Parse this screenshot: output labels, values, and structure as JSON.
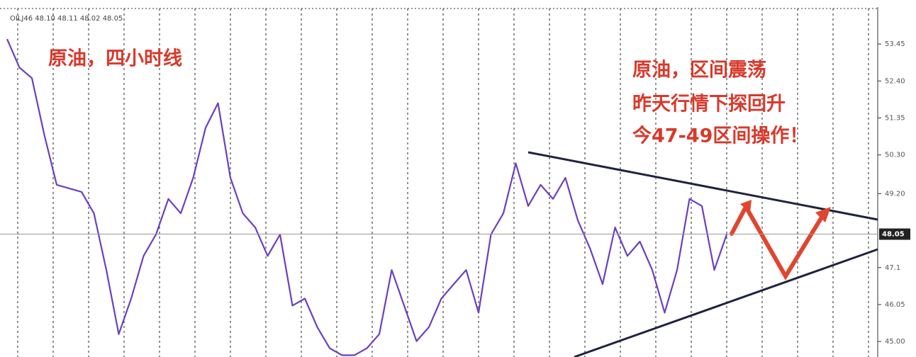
{
  "chart_data": {
    "type": "line",
    "header": "OILJ46 48.10 48.11 48.02 48.05",
    "annotations": [
      "原油，四小时线",
      "原油，区间震荡",
      "昨天行情下探回升",
      "今47-49区间操作！"
    ],
    "series": [
      {
        "color": "#6b3fc0",
        "values": [
          53.59,
          52.78,
          52.48,
          50.87,
          49.45,
          49.35,
          49.25,
          48.64,
          47.03,
          45.21,
          46.22,
          47.43,
          48.04,
          49.05,
          48.64,
          49.65,
          51.07,
          51.77,
          49.65,
          48.64,
          48.24,
          47.43,
          48.04,
          46.02,
          46.22,
          45.41,
          44.81,
          44.61,
          44.61,
          44.81,
          45.21,
          47.03,
          46.02,
          45.01,
          45.41,
          46.22,
          46.63,
          47.03,
          45.82,
          48.04,
          48.64,
          50.06,
          48.85,
          49.45,
          49.05,
          49.65,
          48.44,
          47.63,
          46.63,
          48.24,
          47.43,
          47.84,
          47.03,
          45.82,
          47.03,
          49.05,
          48.85,
          47.03,
          48.04
        ]
      }
    ],
    "ylim": [
      44.56,
      54.7
    ],
    "yticks": [
      53.45,
      {
        "value": 52.4,
        "label": "52.40"
      },
      51.35,
      {
        "value": 50.3,
        "label": "50.30"
      },
      {
        "value": 49.2,
        "label": "49.20"
      },
      47.1,
      46.05,
      {
        "value": 45,
        "label": "45.00"
      }
    ],
    "last_price": {
      "value": 48.05,
      "label": "48.05"
    },
    "grid": true
  }
}
